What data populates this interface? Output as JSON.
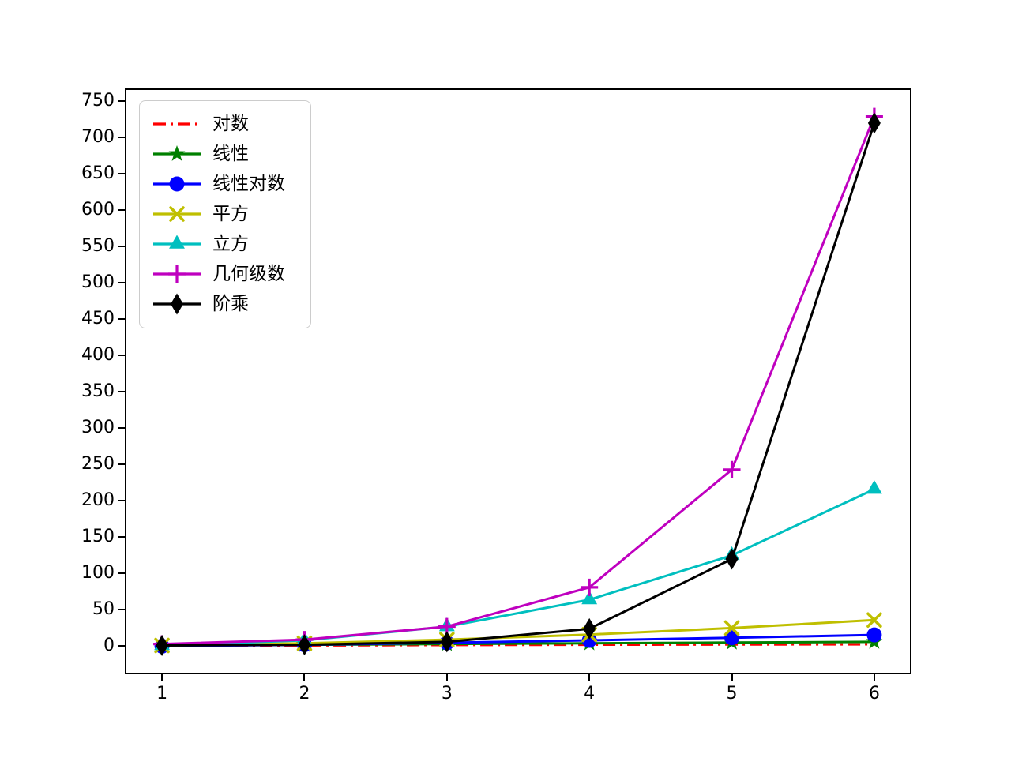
{
  "figure": {
    "background": "#ffffff"
  },
  "chart_data": {
    "type": "line",
    "title": "",
    "xlabel": "",
    "ylabel": "",
    "x": [
      1,
      2,
      3,
      4,
      5,
      6
    ],
    "series": [
      {
        "name": "对数",
        "color": "#ff0000",
        "linestyle": "dashdot",
        "marker": "none",
        "values": [
          0,
          1,
          1.58,
          2,
          2.32,
          2.58
        ]
      },
      {
        "name": "线性",
        "color": "#008000",
        "linestyle": "solid",
        "marker": "star",
        "values": [
          1,
          2,
          3,
          4,
          5,
          6
        ]
      },
      {
        "name": "线性对数",
        "color": "#0000ff",
        "linestyle": "solid",
        "marker": "circle",
        "values": [
          0,
          2,
          4.75,
          8,
          11.61,
          15.51
        ]
      },
      {
        "name": "平方",
        "color": "#bfbf00",
        "linestyle": "solid",
        "marker": "x",
        "values": [
          1,
          4,
          9,
          16,
          25,
          36
        ]
      },
      {
        "name": "立方",
        "color": "#00bfbf",
        "linestyle": "solid",
        "marker": "triangle-up",
        "values": [
          1,
          8,
          27,
          64,
          125,
          216
        ]
      },
      {
        "name": "几何级数",
        "color": "#bf00bf",
        "linestyle": "solid",
        "marker": "plus",
        "values": [
          3,
          9,
          27,
          81,
          243,
          729
        ]
      },
      {
        "name": "阶乘",
        "color": "#000000",
        "linestyle": "solid",
        "marker": "thin-diamond",
        "values": [
          1,
          2,
          6,
          24,
          120,
          720
        ]
      }
    ],
    "x_ticks": [
      1,
      2,
      3,
      4,
      5,
      6
    ],
    "y_ticks": [
      0,
      50,
      100,
      150,
      200,
      250,
      300,
      350,
      400,
      450,
      500,
      550,
      600,
      650,
      700,
      750
    ],
    "xlim": [
      0.75,
      6.25
    ],
    "ylim": [
      -36.5,
      765.5
    ],
    "grid": false,
    "legend_position": "upper left"
  }
}
